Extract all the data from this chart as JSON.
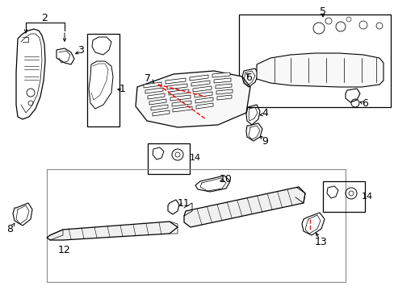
{
  "bg_color": "#ffffff",
  "fig_width": 4.89,
  "fig_height": 3.6,
  "dpi": 100,
  "lc": "#000000",
  "rc": "#ff0000",
  "gc": "#888888"
}
